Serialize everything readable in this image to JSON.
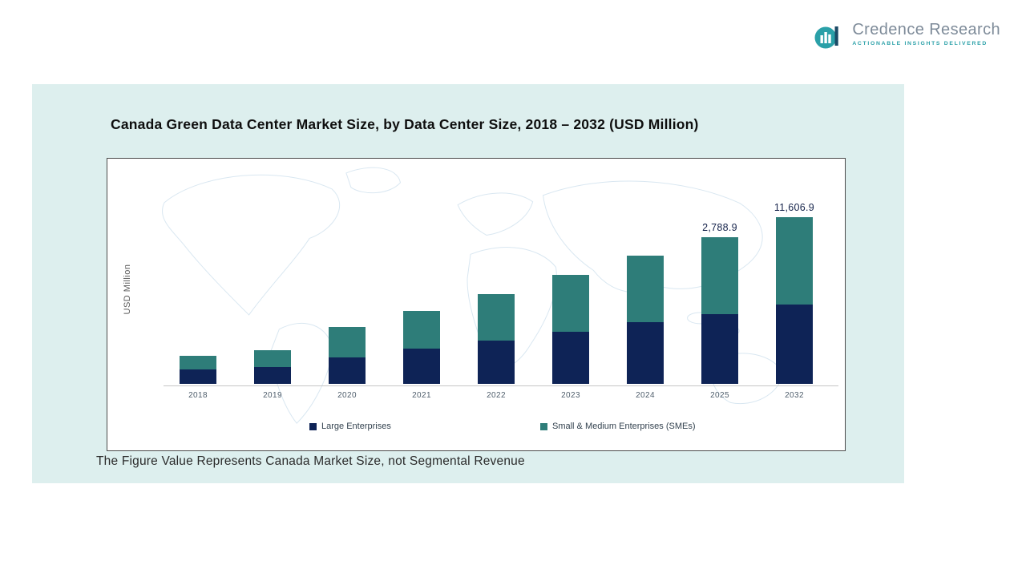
{
  "brand": {
    "name": "Credence Research",
    "tagline": "Actionable Insights Delivered",
    "accent_teal": "#2aa0a8",
    "text_gray": "#7e8b99"
  },
  "panel_background": "#ddefee",
  "footnote": "The Figure Value Represents Canada Market Size, not Segmental Revenue",
  "chart_data": {
    "type": "bar",
    "stacked": true,
    "title": "Canada Green Data Center Market Size, by Data Center Size, 2018 – 2032 (USD Million)",
    "ylabel": "USD Million",
    "xlabel": "",
    "grid": false,
    "legend_position": "bottom",
    "values_are_illustrative_relative_heights": true,
    "categories": [
      "2018",
      "2019",
      "2020",
      "2021",
      "2022",
      "2023",
      "2024",
      "2025",
      "2032"
    ],
    "series": [
      {
        "name": "Large Enterprises",
        "color": "#0e2356",
        "values": [
          18,
          21,
          33,
          44,
          54,
          65,
          77,
          87,
          99
        ]
      },
      {
        "name": "Small & Medium Enterprises (SMEs)",
        "color": "#2e7d79",
        "values": [
          17,
          21,
          38,
          47,
          58,
          71,
          83,
          96,
          109
        ]
      }
    ],
    "data_labels": [
      {
        "category": "2025",
        "text": "2,788.9"
      },
      {
        "category": "2032",
        "text": "11,606.9"
      }
    ]
  }
}
